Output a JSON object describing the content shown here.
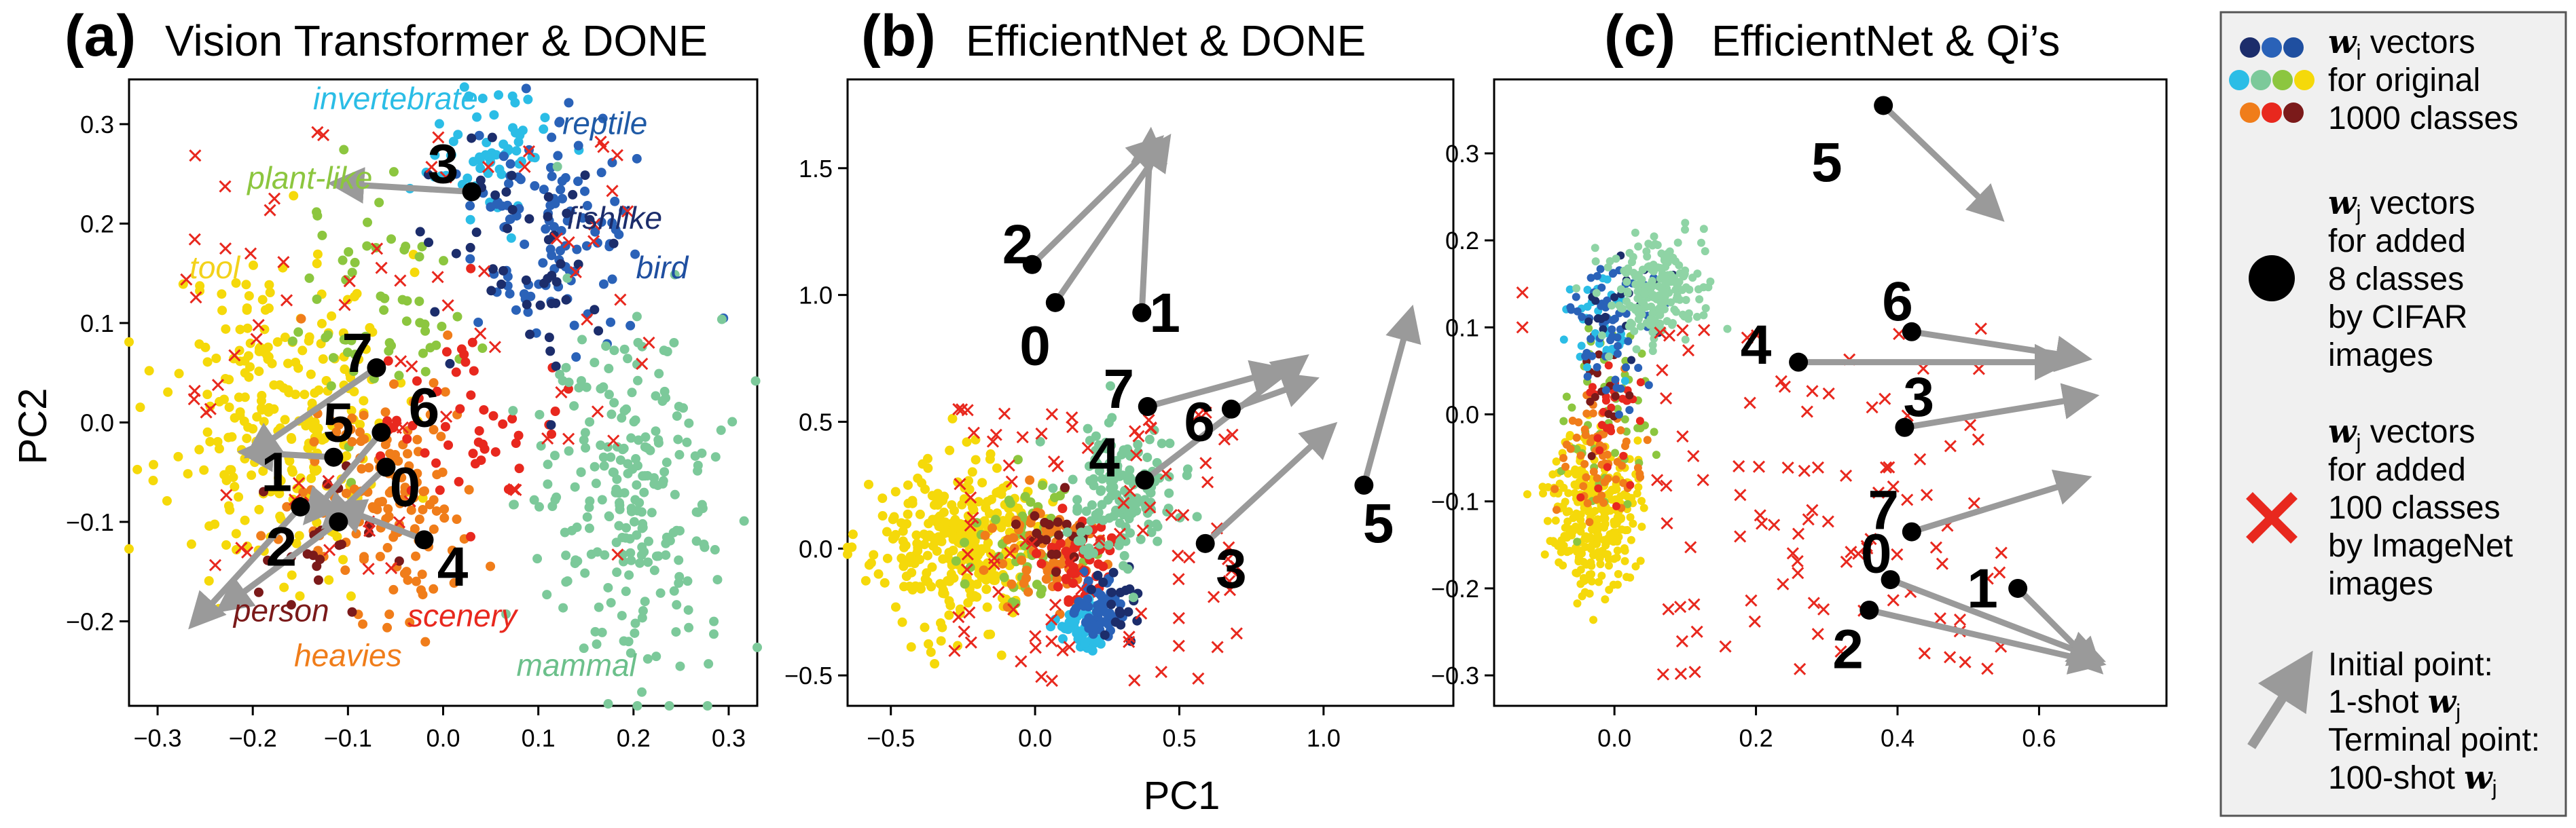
{
  "chart_data": [
    {
      "type": "scatter",
      "panel_tag": "(a)",
      "title": "Vision Transformer & DONE",
      "ylabel": "PC2",
      "xlim": [
        -0.33,
        0.33
      ],
      "ylim": [
        -0.285,
        0.345
      ],
      "xticks": [
        -0.3,
        -0.2,
        -0.1,
        0.0,
        0.1,
        0.2,
        0.3
      ],
      "xtick_labels": [
        "−0.3",
        "−0.2",
        "−0.1",
        "0.0",
        "0.1",
        "0.2",
        "0.3"
      ],
      "yticks": [
        -0.2,
        -0.1,
        0.0,
        0.1,
        0.2,
        0.3
      ],
      "ytick_labels": [
        "−0.2",
        "−0.1",
        "0.0",
        "0.1",
        "0.2",
        "0.3"
      ],
      "category_labels": [
        {
          "text": "invertebrate",
          "x": -0.05,
          "y": 0.315,
          "color": "#2bbde6"
        },
        {
          "text": "reptile",
          "x": 0.17,
          "y": 0.29,
          "color": "#1f5aa6"
        },
        {
          "text": "plant-like",
          "x": -0.14,
          "y": 0.235,
          "color": "#8cc63f"
        },
        {
          "text": "fishlike",
          "x": 0.18,
          "y": 0.195,
          "color": "#1c2d6b"
        },
        {
          "text": "tool",
          "x": -0.24,
          "y": 0.145,
          "color": "#f3d21b"
        },
        {
          "text": "bird",
          "x": 0.23,
          "y": 0.145,
          "color": "#1f4fa0"
        },
        {
          "text": "person",
          "x": -0.17,
          "y": -0.2,
          "color": "#7b1a1a"
        },
        {
          "text": "scenery",
          "x": 0.02,
          "y": -0.205,
          "color": "#e8281e"
        },
        {
          "text": "heavies",
          "x": -0.1,
          "y": -0.245,
          "color": "#f07d1a"
        },
        {
          "text": "mammal",
          "x": 0.14,
          "y": -0.255,
          "color": "#6cc08b"
        }
      ],
      "clusters": [
        {
          "name": "tool",
          "color": "#f5d90a",
          "cx": -0.17,
          "cy": 0.01,
          "sx": 0.06,
          "sy": 0.08,
          "n": 260
        },
        {
          "name": "plant-like",
          "color": "#8cc63f",
          "cx": -0.07,
          "cy": 0.12,
          "sx": 0.04,
          "sy": 0.06,
          "n": 60
        },
        {
          "name": "heavies",
          "color": "#f07d1a",
          "cx": -0.06,
          "cy": -0.07,
          "sx": 0.05,
          "sy": 0.06,
          "n": 140
        },
        {
          "name": "scenery",
          "color": "#e8281e",
          "cx": 0.02,
          "cy": 0.0,
          "sx": 0.04,
          "sy": 0.05,
          "n": 50
        },
        {
          "name": "person",
          "color": "#7b1a1a",
          "cx": -0.13,
          "cy": -0.1,
          "sx": 0.03,
          "sy": 0.04,
          "n": 25
        },
        {
          "name": "invertebrate",
          "color": "#2bbde6",
          "cx": 0.05,
          "cy": 0.27,
          "sx": 0.03,
          "sy": 0.03,
          "n": 60
        },
        {
          "name": "reptile",
          "color": "#2a62b8",
          "cx": 0.11,
          "cy": 0.2,
          "sx": 0.04,
          "sy": 0.06,
          "n": 110
        },
        {
          "name": "fishlike",
          "color": "#1c2d6b",
          "cx": 0.08,
          "cy": 0.18,
          "sx": 0.05,
          "sy": 0.06,
          "n": 50
        },
        {
          "name": "mammal",
          "color": "#7cc99a",
          "cx": 0.2,
          "cy": -0.08,
          "sx": 0.05,
          "sy": 0.09,
          "n": 240
        }
      ],
      "added_100_count": 80,
      "added_100_box": {
        "x": [
          -0.27,
          0.22
        ],
        "y": [
          -0.15,
          0.3
        ]
      },
      "points_8": [
        {
          "label": "0",
          "x": -0.06,
          "y": -0.045,
          "tx": -0.12,
          "ty": -0.1,
          "lx": -0.04,
          "ly": -0.065
        },
        {
          "label": "1",
          "x": -0.15,
          "y": -0.085,
          "tx": -0.26,
          "ty": -0.2,
          "lx": -0.175,
          "ly": -0.05
        },
        {
          "label": "2",
          "x": -0.11,
          "y": -0.1,
          "tx": -0.23,
          "ty": -0.185,
          "lx": -0.17,
          "ly": -0.125
        },
        {
          "label": "3",
          "x": 0.03,
          "y": 0.232,
          "tx": -0.11,
          "ty": 0.24,
          "lx": 0.0,
          "ly": 0.26
        },
        {
          "label": "4",
          "x": -0.02,
          "y": -0.118,
          "tx": -0.11,
          "ty": -0.085,
          "lx": 0.01,
          "ly": -0.145
        },
        {
          "label": "5",
          "x": -0.115,
          "y": -0.035,
          "tx": -0.205,
          "ty": -0.03,
          "lx": -0.11,
          "ly": -0.0
        },
        {
          "label": "6",
          "x": -0.065,
          "y": -0.01,
          "tx": -0.14,
          "ty": -0.095,
          "lx": -0.02,
          "ly": 0.015
        },
        {
          "label": "7",
          "x": -0.07,
          "y": 0.055,
          "tx": -0.2,
          "ty": -0.03,
          "lx": -0.09,
          "ly": 0.07
        }
      ]
    },
    {
      "type": "scatter",
      "panel_tag": "(b)",
      "title": "EfficientNet & DONE",
      "xlabel": "PC1",
      "xlim": [
        -0.65,
        1.45
      ],
      "ylim": [
        -0.62,
        1.85
      ],
      "xticks": [
        -0.5,
        0.0,
        0.5,
        1.0
      ],
      "xtick_labels": [
        "−0.5",
        "0.0",
        "0.5",
        "1.0"
      ],
      "yticks": [
        -0.5,
        0.0,
        0.5,
        1.0,
        1.5
      ],
      "ytick_labels": [
        "−0.5",
        "0.0",
        "0.5",
        "1.0",
        "1.5"
      ],
      "clusters": [
        {
          "name": "tool",
          "color": "#f5d90a",
          "cx": -0.28,
          "cy": 0.02,
          "sx": 0.14,
          "sy": 0.16,
          "n": 300
        },
        {
          "name": "plant-like",
          "color": "#8cc63f",
          "cx": -0.02,
          "cy": 0.02,
          "sx": 0.1,
          "sy": 0.12,
          "n": 60
        },
        {
          "name": "heavies",
          "color": "#f07d1a",
          "cx": 0.02,
          "cy": -0.02,
          "sx": 0.1,
          "sy": 0.12,
          "n": 70
        },
        {
          "name": "scenery",
          "color": "#e8281e",
          "cx": 0.16,
          "cy": -0.05,
          "sx": 0.07,
          "sy": 0.1,
          "n": 60
        },
        {
          "name": "person",
          "color": "#7b1a1a",
          "cx": 0.05,
          "cy": 0.05,
          "sx": 0.05,
          "sy": 0.06,
          "n": 20
        },
        {
          "name": "invertebrate",
          "color": "#2bbde6",
          "cx": 0.15,
          "cy": -0.33,
          "sx": 0.04,
          "sy": 0.05,
          "n": 40
        },
        {
          "name": "reptile",
          "color": "#2a62b8",
          "cx": 0.22,
          "cy": -0.25,
          "sx": 0.05,
          "sy": 0.06,
          "n": 50
        },
        {
          "name": "fishlike",
          "color": "#1c2d6b",
          "cx": 0.28,
          "cy": -0.2,
          "sx": 0.05,
          "sy": 0.08,
          "n": 20
        },
        {
          "name": "mammal",
          "color": "#7cc99a",
          "cx": 0.3,
          "cy": 0.22,
          "sx": 0.09,
          "sy": 0.13,
          "n": 150
        }
      ],
      "added_100_count": 90,
      "added_100_box": {
        "x": [
          -0.3,
          0.7
        ],
        "y": [
          -0.55,
          0.55
        ]
      },
      "points_8": [
        {
          "label": "0",
          "x": 0.07,
          "y": 0.97,
          "tx": 0.45,
          "ty": 1.6,
          "lx": 0.0,
          "ly": 0.8
        },
        {
          "label": "1",
          "x": 0.37,
          "y": 0.93,
          "tx": 0.4,
          "ty": 1.62,
          "lx": 0.45,
          "ly": 0.93
        },
        {
          "label": "2",
          "x": -0.01,
          "y": 1.12,
          "tx": 0.42,
          "ty": 1.6,
          "lx": -0.06,
          "ly": 1.2
        },
        {
          "label": "3",
          "x": 0.59,
          "y": 0.02,
          "tx": 1.02,
          "ty": 0.47,
          "lx": 0.68,
          "ly": -0.08
        },
        {
          "label": "4",
          "x": 0.38,
          "y": 0.27,
          "tx": 0.92,
          "ty": 0.74,
          "lx": 0.24,
          "ly": 0.36
        },
        {
          "label": "5",
          "x": 1.14,
          "y": 0.25,
          "tx": 1.3,
          "ty": 0.92,
          "lx": 1.19,
          "ly": 0.1
        },
        {
          "label": "6",
          "x": 0.68,
          "y": 0.55,
          "tx": 0.95,
          "ty": 0.66,
          "lx": 0.57,
          "ly": 0.5
        },
        {
          "label": "7",
          "x": 0.39,
          "y": 0.56,
          "tx": 0.84,
          "ty": 0.7,
          "lx": 0.29,
          "ly": 0.63
        }
      ]
    },
    {
      "type": "scatter",
      "panel_tag": "(c)",
      "title": "EfficientNet & Qi’s",
      "xlim": [
        -0.17,
        0.78
      ],
      "ylim": [
        -0.335,
        0.385
      ],
      "xticks": [
        0.0,
        0.2,
        0.4,
        0.6
      ],
      "xtick_labels": [
        "0.0",
        "0.2",
        "0.4",
        "0.6"
      ],
      "yticks": [
        -0.3,
        -0.2,
        -0.1,
        0.0,
        0.1,
        0.2,
        0.3
      ],
      "ytick_labels": [
        "−0.3",
        "−0.2",
        "−0.1",
        "0.0",
        "0.1",
        "0.2",
        "0.3"
      ],
      "clusters": [
        {
          "name": "tool",
          "color": "#f5d90a",
          "cx": -0.03,
          "cy": -0.11,
          "sx": 0.03,
          "sy": 0.045,
          "n": 300
        },
        {
          "name": "plant-like",
          "color": "#8cc63f",
          "cx": -0.01,
          "cy": 0.0,
          "sx": 0.03,
          "sy": 0.05,
          "n": 60
        },
        {
          "name": "heavies",
          "color": "#f07d1a",
          "cx": -0.02,
          "cy": -0.04,
          "sx": 0.03,
          "sy": 0.04,
          "n": 60
        },
        {
          "name": "scenery",
          "color": "#e8281e",
          "cx": 0.0,
          "cy": 0.0,
          "sx": 0.025,
          "sy": 0.05,
          "n": 30
        },
        {
          "name": "person",
          "color": "#7b1a1a",
          "cx": -0.01,
          "cy": 0.04,
          "sx": 0.02,
          "sy": 0.03,
          "n": 15
        },
        {
          "name": "invertebrate",
          "color": "#2bbde6",
          "cx": -0.02,
          "cy": 0.1,
          "sx": 0.02,
          "sy": 0.03,
          "n": 40
        },
        {
          "name": "reptile",
          "color": "#2a62b8",
          "cx": 0.0,
          "cy": 0.1,
          "sx": 0.03,
          "sy": 0.04,
          "n": 60
        },
        {
          "name": "fishlike",
          "color": "#1c2d6b",
          "cx": 0.01,
          "cy": 0.12,
          "sx": 0.03,
          "sy": 0.03,
          "n": 20
        },
        {
          "name": "mammal",
          "color": "#8fd4a5",
          "cx": 0.06,
          "cy": 0.14,
          "sx": 0.035,
          "sy": 0.03,
          "n": 200
        }
      ],
      "added_100_count": 100,
      "added_100_box": {
        "x": [
          0.05,
          0.55
        ],
        "y": [
          -0.3,
          0.1
        ]
      },
      "added_100_extra": [
        {
          "x": -0.13,
          "y": 0.14
        },
        {
          "x": -0.13,
          "y": 0.1
        }
      ],
      "points_8": [
        {
          "label": "0",
          "x": 0.39,
          "y": -0.19,
          "tx": 0.68,
          "ty": -0.28,
          "lx": 0.37,
          "ly": -0.16
        },
        {
          "label": "1",
          "x": 0.57,
          "y": -0.2,
          "tx": 0.68,
          "ty": -0.29,
          "lx": 0.52,
          "ly": -0.2
        },
        {
          "label": "2",
          "x": 0.36,
          "y": -0.225,
          "tx": 0.68,
          "ty": -0.285,
          "lx": 0.33,
          "ly": -0.27
        },
        {
          "label": "3",
          "x": 0.41,
          "y": -0.015,
          "tx": 0.67,
          "ty": 0.02,
          "lx": 0.43,
          "ly": 0.02
        },
        {
          "label": "4",
          "x": 0.26,
          "y": 0.06,
          "tx": 0.63,
          "ty": 0.06,
          "lx": 0.2,
          "ly": 0.08
        },
        {
          "label": "5",
          "x": 0.38,
          "y": 0.355,
          "tx": 0.54,
          "ty": 0.23,
          "lx": 0.3,
          "ly": 0.29
        },
        {
          "label": "6",
          "x": 0.42,
          "y": 0.095,
          "tx": 0.66,
          "ty": 0.065,
          "lx": 0.4,
          "ly": 0.13
        },
        {
          "label": "7",
          "x": 0.42,
          "y": -0.135,
          "tx": 0.66,
          "ty": -0.075,
          "lx": 0.38,
          "ly": -0.11
        }
      ]
    }
  ],
  "legend": {
    "dot_colors_row1": [
      "#1c2d6b",
      "#2a62b8",
      "#1f4fa0"
    ],
    "dot_colors_row2": [
      "#2bbde6",
      "#7cc99a",
      "#8cc63f",
      "#f5d90a"
    ],
    "dot_colors_row3": [
      "#f07d1a",
      "#e8281e",
      "#7b1a1a"
    ],
    "entry1_w": "w",
    "entry1_sub": "i",
    "entry1_lines": [
      " vectors",
      "for original",
      "1000 classes"
    ],
    "entry2_w": "w",
    "entry2_sub": "j",
    "entry2_lines": [
      " vectors",
      "for added",
      "8 classes",
      "by CIFAR",
      "images"
    ],
    "entry3_w": "w",
    "entry3_sub": "j",
    "entry3_lines": [
      " vectors",
      "for added",
      "100 classes",
      "by ImageNet",
      "images"
    ],
    "entry4_lines": [
      "Initial point:",
      " 1-shot ",
      "Terminal point:",
      " 100-shot "
    ],
    "entry4_w": "w",
    "entry4_sub": "j"
  },
  "colors": {
    "arrow": "#9a9a9a",
    "cross": "#e8281e",
    "point": "#000000"
  }
}
